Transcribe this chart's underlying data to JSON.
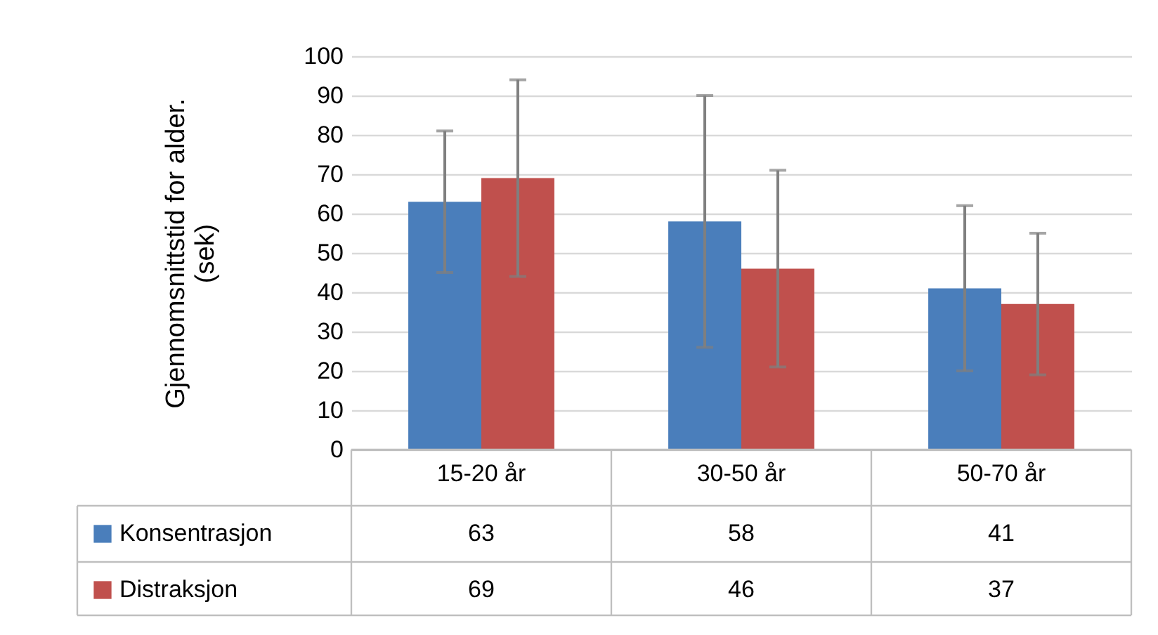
{
  "chart_data": {
    "type": "bar",
    "ylabel": "Gjennomsnittstid for alder. (sek)",
    "categories": [
      "15-20 år",
      "30-50 år",
      "50-70 år"
    ],
    "series": [
      {
        "name": "Konsentrasjon",
        "color": "#4a7ebb",
        "values": [
          63,
          58,
          41
        ],
        "errors": [
          18,
          32,
          21
        ]
      },
      {
        "name": "Distraksjon",
        "color": "#c0504d",
        "values": [
          69,
          46,
          37
        ],
        "errors": [
          25,
          25,
          18
        ]
      }
    ],
    "ylim": [
      0,
      100
    ],
    "yticks": [
      0,
      10,
      20,
      30,
      40,
      50,
      60,
      70,
      80,
      90,
      100
    ],
    "grid": "y",
    "legend": "bottom left",
    "data_labels": true
  }
}
